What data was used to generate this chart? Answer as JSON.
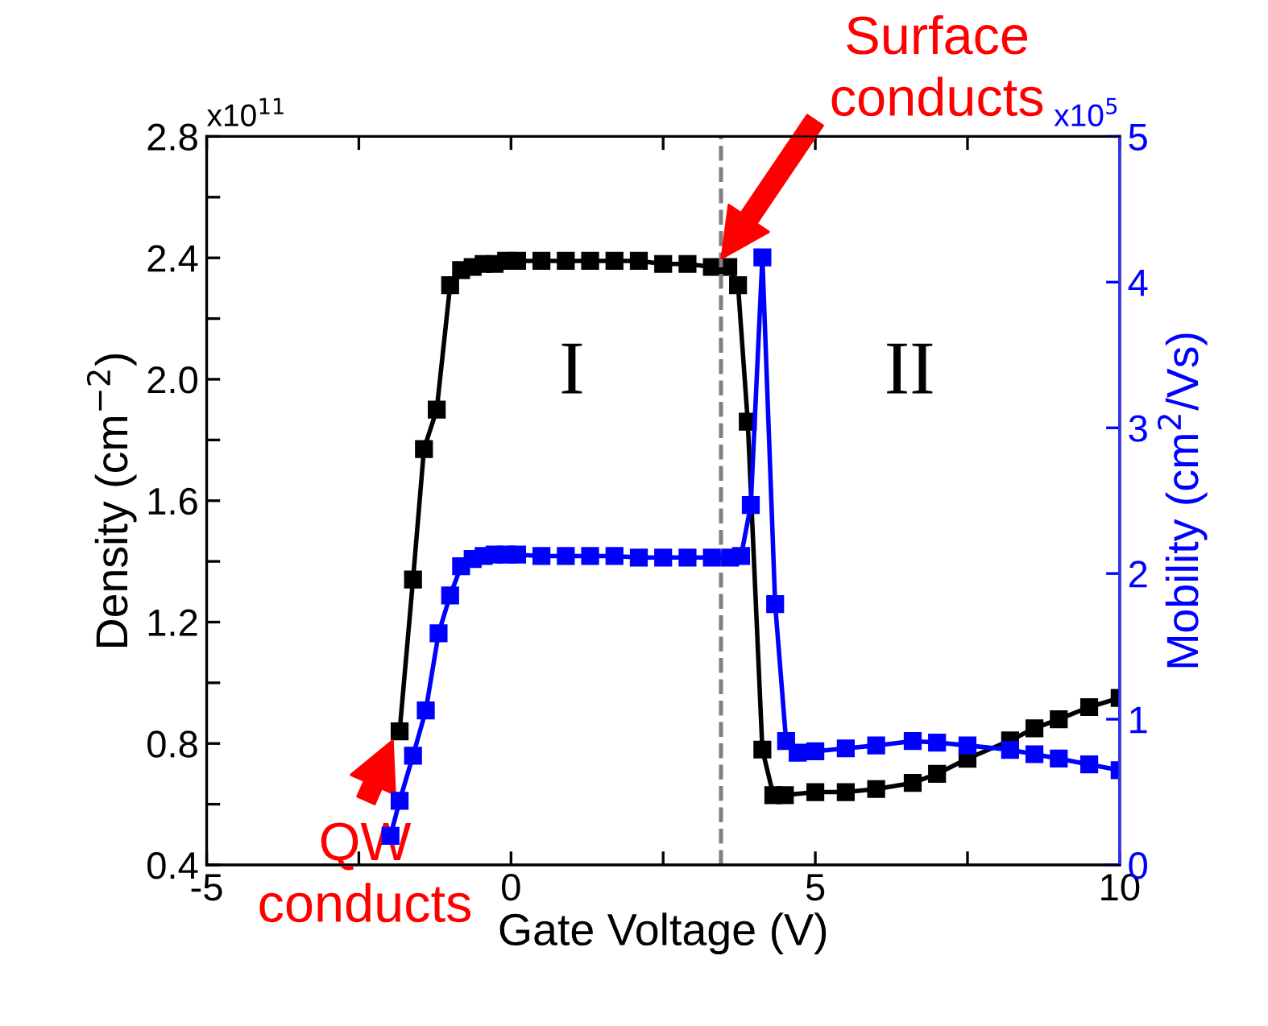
{
  "chart_data": {
    "type": "line",
    "xlabel": "Gate Voltage (V)",
    "ylabel": "Density (cm$^{−2}$)",
    "y2label": "Mobility (cm$^{2}$/Vs)",
    "series": [
      {
        "color": "#000000",
        "x": [
          -1.83,
          -1.61,
          -1.43,
          -1.22,
          -1.0,
          -0.82,
          -0.63,
          -0.45,
          -0.27,
          -0.08,
          0.1,
          0.5,
          0.9,
          1.3,
          1.7,
          2.1,
          2.5,
          2.9,
          3.3,
          3.57,
          3.73,
          3.89,
          4.13,
          4.31,
          4.5,
          5.0,
          5.5,
          6.0,
          6.6,
          7.0,
          7.5,
          8.2,
          8.6,
          9.0,
          9.5,
          10.0
        ],
        "values": [
          0.84,
          1.34,
          1.77,
          1.9,
          2.31,
          2.36,
          2.37,
          2.38,
          2.38,
          2.39,
          2.39,
          2.39,
          2.39,
          2.39,
          2.39,
          2.39,
          2.38,
          2.38,
          2.37,
          2.37,
          2.31,
          1.86,
          0.78,
          0.63,
          0.63,
          0.64,
          0.64,
          0.65,
          0.67,
          0.7,
          0.75,
          0.81,
          0.85,
          0.88,
          0.92,
          0.95
        ]
      },
      {
        "color": "#0000ff",
        "axis": "y2",
        "x": [
          -1.98,
          -1.83,
          -1.61,
          -1.4,
          -1.19,
          -1.0,
          -0.82,
          -0.63,
          -0.45,
          -0.27,
          -0.08,
          0.1,
          0.5,
          0.9,
          1.3,
          1.7,
          2.1,
          2.5,
          2.9,
          3.3,
          3.6,
          3.78,
          3.94,
          4.13,
          4.34,
          4.52,
          4.71,
          5.0,
          5.5,
          6.0,
          6.6,
          7.0,
          7.5,
          8.2,
          8.6,
          9.0,
          9.5,
          10.0
        ],
        "values": [
          0.2,
          0.44,
          0.75,
          1.06,
          1.59,
          1.85,
          2.05,
          2.1,
          2.12,
          2.13,
          2.13,
          2.13,
          2.12,
          2.12,
          2.12,
          2.12,
          2.11,
          2.11,
          2.11,
          2.11,
          2.11,
          2.12,
          2.47,
          4.17,
          1.79,
          0.85,
          0.77,
          0.78,
          0.8,
          0.82,
          0.85,
          0.84,
          0.82,
          0.79,
          0.76,
          0.73,
          0.69,
          0.65
        ]
      }
    ],
    "xlim": [
      -5,
      10
    ],
    "xticks": [
      -5,
      {
        "value": -2.5,
        "label": null
      },
      0,
      {
        "value": 2.5,
        "label": null
      },
      5,
      {
        "value": 7.5,
        "label": null
      },
      10
    ],
    "ylim": [
      0.4,
      2.8
    ],
    "yticks": [
      0.4,
      {
        "value": 0.6,
        "label": null
      },
      0.8,
      {
        "value": 1.0,
        "label": null
      },
      1.2,
      {
        "value": 1.4,
        "label": null
      },
      1.6,
      {
        "value": 1.8,
        "label": null
      },
      {
        "value": 2.0,
        "label": "2.0"
      },
      {
        "value": 2.2,
        "label": null
      },
      2.4,
      {
        "value": 2.6,
        "label": null
      },
      2.8
    ],
    "y2lim": [
      0,
      5
    ],
    "y2ticks": [
      0,
      1,
      2,
      3,
      4,
      5
    ],
    "ref_lines": [
      {
        "axis": "x",
        "value": 3.45,
        "color": "#808080",
        "line_style": "dashed"
      }
    ],
    "annotations": [
      "Surface\nconducts",
      {
        "text": "QW\nconducts",
        "x": -1.9,
        "y": 0.83
      },
      "I",
      "II",
      "x10$^{11}$",
      "x10$^{5}$"
    ],
    "marker": "square",
    "line_style": "solid",
    "grid": false
  }
}
